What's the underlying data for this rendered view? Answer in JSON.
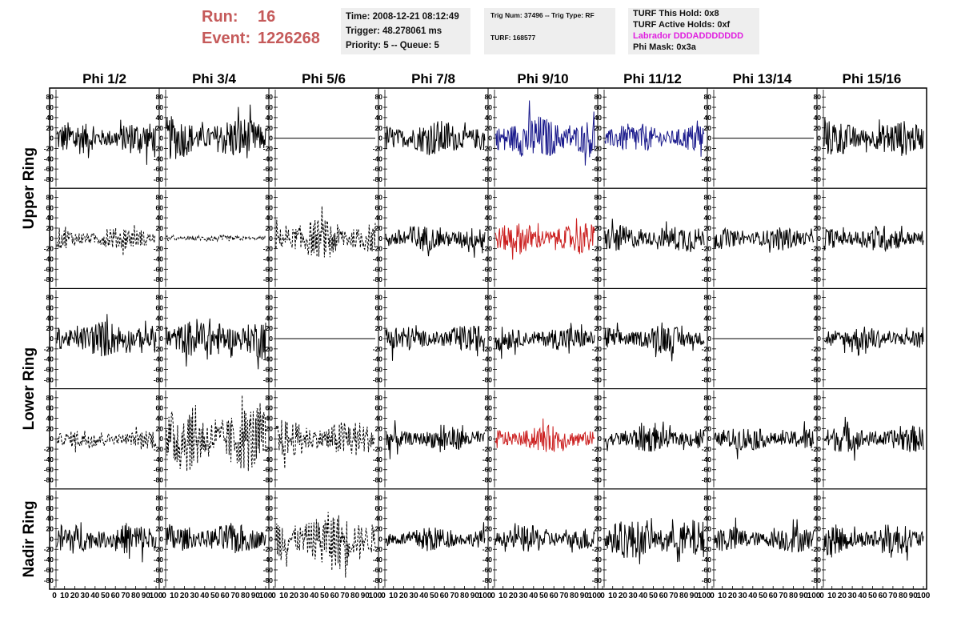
{
  "header": {
    "run_label": "Run:",
    "run_value": "16",
    "event_label": "Event:",
    "event_value": "1226268",
    "time": "Time: 2008-12-21 08:12:49",
    "trigger": "Trigger: 48.278061 ms",
    "priority": "Priority: 5 -- Queue: 5",
    "trig_num": "Trig Num: 37496 -- Trig Type: RF",
    "turf": "TURF: 168577",
    "turf_hold": "TURF This Hold: 0x8",
    "turf_active": "TURF Active Holds: 0xf",
    "labrador": "Labrador DDDADDDDDDD",
    "phi_mask": "Phi Mask: 0x3a",
    "colors": {
      "run_text": "#c55a5a",
      "labrador": "#e020e0"
    }
  },
  "chart_data": {
    "type": "line",
    "columns": [
      "Phi 1/2",
      "Phi 3/4",
      "Phi 5/6",
      "Phi 7/8",
      "Phi 9/10",
      "Phi 11/12",
      "Phi 13/14",
      "Phi 15/16"
    ],
    "ring_labels": [
      "Upper Ring",
      "Lower Ring",
      "Nadir Ring"
    ],
    "rows_per_ring": [
      2,
      2,
      1
    ],
    "y_ticks": [
      "80",
      "60",
      "40",
      "20",
      "0",
      "-20",
      "-40",
      "-60",
      "-80"
    ],
    "x_ticks": [
      "0",
      "10",
      "20",
      "30",
      "40",
      "50",
      "60",
      "70",
      "80",
      "90",
      "100"
    ],
    "ylim": [
      -85,
      85
    ],
    "xlim": [
      0,
      100
    ],
    "series_colors": {
      "default": "#000000",
      "blue": "#1a1a8c",
      "red": "#cc2222"
    },
    "panels": [
      {
        "row": 0,
        "col": 0,
        "style": "solid",
        "color": "default",
        "amplitude": 28
      },
      {
        "row": 0,
        "col": 1,
        "style": "solid",
        "color": "default",
        "amplitude": 36
      },
      {
        "row": 0,
        "col": 2,
        "style": "flat",
        "color": "default",
        "amplitude": 0
      },
      {
        "row": 0,
        "col": 3,
        "style": "solid",
        "color": "default",
        "amplitude": 30
      },
      {
        "row": 0,
        "col": 4,
        "style": "solid",
        "color": "blue",
        "amplitude": 38
      },
      {
        "row": 0,
        "col": 5,
        "style": "solid",
        "color": "blue",
        "amplitude": 25
      },
      {
        "row": 0,
        "col": 6,
        "style": "flat",
        "color": "default",
        "amplitude": 0
      },
      {
        "row": 0,
        "col": 7,
        "style": "solid",
        "color": "default",
        "amplitude": 30
      },
      {
        "row": 1,
        "col": 0,
        "style": "dashed",
        "color": "default",
        "amplitude": 18
      },
      {
        "row": 1,
        "col": 1,
        "style": "dashed",
        "color": "default",
        "amplitude": 5
      },
      {
        "row": 1,
        "col": 2,
        "style": "dashed",
        "color": "default",
        "amplitude": 32
      },
      {
        "row": 1,
        "col": 3,
        "style": "solid",
        "color": "default",
        "amplitude": 22
      },
      {
        "row": 1,
        "col": 4,
        "style": "solid",
        "color": "red",
        "amplitude": 26
      },
      {
        "row": 1,
        "col": 5,
        "style": "solid",
        "color": "default",
        "amplitude": 22
      },
      {
        "row": 1,
        "col": 6,
        "style": "solid",
        "color": "default",
        "amplitude": 18
      },
      {
        "row": 1,
        "col": 7,
        "style": "solid",
        "color": "default",
        "amplitude": 22
      },
      {
        "row": 2,
        "col": 0,
        "style": "solid",
        "color": "default",
        "amplitude": 30
      },
      {
        "row": 2,
        "col": 1,
        "style": "solid",
        "color": "default",
        "amplitude": 36
      },
      {
        "row": 2,
        "col": 2,
        "style": "flat",
        "color": "default",
        "amplitude": 0
      },
      {
        "row": 2,
        "col": 3,
        "style": "solid",
        "color": "default",
        "amplitude": 22
      },
      {
        "row": 2,
        "col": 4,
        "style": "solid",
        "color": "default",
        "amplitude": 20
      },
      {
        "row": 2,
        "col": 5,
        "style": "solid",
        "color": "default",
        "amplitude": 22
      },
      {
        "row": 2,
        "col": 6,
        "style": "flat",
        "color": "default",
        "amplitude": 0
      },
      {
        "row": 2,
        "col": 7,
        "style": "solid",
        "color": "default",
        "amplitude": 20
      },
      {
        "row": 3,
        "col": 0,
        "style": "dashed",
        "color": "default",
        "amplitude": 16
      },
      {
        "row": 3,
        "col": 1,
        "style": "dashed",
        "color": "default",
        "amplitude": 55
      },
      {
        "row": 3,
        "col": 2,
        "style": "dashed",
        "color": "default",
        "amplitude": 32
      },
      {
        "row": 3,
        "col": 3,
        "style": "solid",
        "color": "default",
        "amplitude": 20
      },
      {
        "row": 3,
        "col": 4,
        "style": "solid",
        "color": "red",
        "amplitude": 22
      },
      {
        "row": 3,
        "col": 5,
        "style": "solid",
        "color": "default",
        "amplitude": 22
      },
      {
        "row": 3,
        "col": 6,
        "style": "solid",
        "color": "default",
        "amplitude": 20
      },
      {
        "row": 3,
        "col": 7,
        "style": "solid",
        "color": "default",
        "amplitude": 22
      },
      {
        "row": 4,
        "col": 0,
        "style": "solid",
        "color": "default",
        "amplitude": 26
      },
      {
        "row": 4,
        "col": 1,
        "style": "solid",
        "color": "default",
        "amplitude": 26
      },
      {
        "row": 4,
        "col": 2,
        "style": "dashed",
        "color": "default",
        "amplitude": 45
      },
      {
        "row": 4,
        "col": 3,
        "style": "solid",
        "color": "default",
        "amplitude": 20
      },
      {
        "row": 4,
        "col": 4,
        "style": "solid",
        "color": "default",
        "amplitude": 22
      },
      {
        "row": 4,
        "col": 5,
        "style": "solid",
        "color": "default",
        "amplitude": 32
      },
      {
        "row": 4,
        "col": 6,
        "style": "solid",
        "color": "default",
        "amplitude": 22
      },
      {
        "row": 4,
        "col": 7,
        "style": "solid",
        "color": "default",
        "amplitude": 26
      }
    ]
  }
}
